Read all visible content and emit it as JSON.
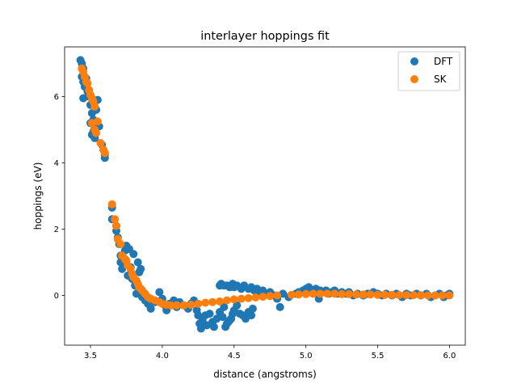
{
  "chart_data": {
    "type": "scatter",
    "title": "interlayer hoppings fit",
    "xlabel": "distance (angstroms)",
    "ylabel": "hoppings (eV)",
    "xlim": [
      3.32,
      6.11
    ],
    "ylim": [
      -1.5,
      7.5
    ],
    "xticks": [
      3.5,
      4.0,
      4.5,
      5.0,
      5.5,
      6.0
    ],
    "xtick_labels": [
      "3.5",
      "4.0",
      "4.5",
      "5.0",
      "5.5",
      "6.0"
    ],
    "yticks": [
      0,
      2,
      4,
      6
    ],
    "ytick_labels": [
      "0",
      "2",
      "4",
      "6"
    ],
    "grid": false,
    "legend": "top-right",
    "series": [
      {
        "name": "DFT",
        "color": "#1f77b4",
        "points": [
          [
            3.43,
            7.1
          ],
          [
            3.44,
            7.0
          ],
          [
            3.45,
            6.85
          ],
          [
            3.44,
            6.6
          ],
          [
            3.45,
            6.45
          ],
          [
            3.46,
            6.3
          ],
          [
            3.47,
            6.55
          ],
          [
            3.45,
            5.95
          ],
          [
            3.48,
            6.15
          ],
          [
            3.49,
            6.0
          ],
          [
            3.5,
            5.75
          ],
          [
            3.51,
            5.5
          ],
          [
            3.52,
            5.3
          ],
          [
            3.5,
            5.2
          ],
          [
            3.53,
            5.05
          ],
          [
            3.52,
            4.95
          ],
          [
            3.51,
            4.85
          ],
          [
            3.53,
            4.75
          ],
          [
            3.54,
            5.6
          ],
          [
            3.55,
            5.9
          ],
          [
            3.56,
            5.1
          ],
          [
            3.58,
            4.55
          ],
          [
            3.59,
            4.4
          ],
          [
            3.6,
            4.25
          ],
          [
            3.6,
            4.15
          ],
          [
            3.65,
            2.65
          ],
          [
            3.65,
            2.3
          ],
          [
            3.68,
            2.1
          ],
          [
            3.68,
            1.95
          ],
          [
            3.69,
            1.75
          ],
          [
            3.7,
            1.55
          ],
          [
            3.71,
            1.2
          ],
          [
            3.71,
            1.0
          ],
          [
            3.72,
            0.8
          ],
          [
            3.73,
            1.1
          ],
          [
            3.74,
            1.35
          ],
          [
            3.75,
            1.5
          ],
          [
            3.75,
            0.95
          ],
          [
            3.76,
            0.6
          ],
          [
            3.77,
            1.4
          ],
          [
            3.78,
            0.85
          ],
          [
            3.79,
            0.5
          ],
          [
            3.8,
            1.25
          ],
          [
            3.81,
            0.3
          ],
          [
            3.82,
            0.05
          ],
          [
            3.83,
            1.0
          ],
          [
            3.84,
            0.7
          ],
          [
            3.85,
            0.8
          ],
          [
            3.86,
            0.15
          ],
          [
            3.86,
            -0.05
          ],
          [
            3.88,
            -0.15
          ],
          [
            3.9,
            -0.25
          ],
          [
            3.92,
            -0.4
          ],
          [
            3.95,
            -0.2
          ],
          [
            3.98,
            0.1
          ],
          [
            4.0,
            -0.1
          ],
          [
            4.02,
            -0.3
          ],
          [
            4.03,
            -0.45
          ],
          [
            4.05,
            -0.25
          ],
          [
            4.08,
            -0.15
          ],
          [
            4.1,
            -0.35
          ],
          [
            4.12,
            -0.2
          ],
          [
            4.15,
            -0.3
          ],
          [
            4.18,
            -0.4
          ],
          [
            4.2,
            -0.25
          ],
          [
            4.22,
            -0.15
          ],
          [
            4.24,
            -0.45
          ],
          [
            4.25,
            -0.6
          ],
          [
            4.26,
            -0.85
          ],
          [
            4.27,
            -1.0
          ],
          [
            4.28,
            -0.75
          ],
          [
            4.3,
            -0.6
          ],
          [
            4.31,
            -0.9
          ],
          [
            4.33,
            -0.55
          ],
          [
            4.35,
            -0.8
          ],
          [
            4.36,
            -0.95
          ],
          [
            4.38,
            -0.7
          ],
          [
            4.4,
            -0.5
          ],
          [
            4.42,
            -0.65
          ],
          [
            4.43,
            -0.35
          ],
          [
            4.44,
            -0.95
          ],
          [
            4.45,
            -0.85
          ],
          [
            4.46,
            -0.8
          ],
          [
            4.47,
            -0.75
          ],
          [
            4.48,
            -0.7
          ],
          [
            4.49,
            -0.55
          ],
          [
            4.5,
            -0.45
          ],
          [
            4.52,
            -0.3
          ],
          [
            4.54,
            -0.55
          ],
          [
            4.56,
            -0.6
          ],
          [
            4.58,
            -0.7
          ],
          [
            4.6,
            -0.5
          ],
          [
            4.62,
            -0.6
          ],
          [
            4.63,
            -0.4
          ],
          [
            4.4,
            0.3
          ],
          [
            4.41,
            0.35
          ],
          [
            4.43,
            0.3
          ],
          [
            4.45,
            0.3
          ],
          [
            4.47,
            0.25
          ],
          [
            4.49,
            0.35
          ],
          [
            4.5,
            0.25
          ],
          [
            4.52,
            0.3
          ],
          [
            4.55,
            0.2
          ],
          [
            4.57,
            0.3
          ],
          [
            4.6,
            0.2
          ],
          [
            4.62,
            0.25
          ],
          [
            4.64,
            0.15
          ],
          [
            4.66,
            0.2
          ],
          [
            4.68,
            0.1
          ],
          [
            4.7,
            0.15
          ],
          [
            4.72,
            0.05
          ],
          [
            4.75,
            0.1
          ],
          [
            4.78,
            0.0
          ],
          [
            4.8,
            -0.1
          ],
          [
            4.82,
            -0.35
          ],
          [
            4.84,
            0.05
          ],
          [
            4.88,
            -0.05
          ],
          [
            4.93,
            0.05
          ],
          [
            4.95,
            0.1
          ],
          [
            4.98,
            0.15
          ],
          [
            5.0,
            0.2
          ],
          [
            5.02,
            0.25
          ],
          [
            5.03,
            0.1
          ],
          [
            5.05,
            0.15
          ],
          [
            5.07,
            0.2
          ],
          [
            5.09,
            -0.1
          ],
          [
            5.1,
            0.15
          ],
          [
            5.12,
            0.1
          ],
          [
            5.14,
            0.15
          ],
          [
            5.16,
            0.05
          ],
          [
            5.18,
            0.1
          ],
          [
            5.2,
            0.15
          ],
          [
            5.22,
            0.05
          ],
          [
            5.25,
            0.1
          ],
          [
            5.28,
            0.05
          ],
          [
            5.3,
            0.1
          ],
          [
            5.33,
            0.0
          ],
          [
            5.36,
            0.05
          ],
          [
            5.4,
            0.0
          ],
          [
            5.43,
            0.05
          ],
          [
            5.47,
            0.1
          ],
          [
            5.5,
            0.05
          ],
          [
            5.53,
            0.0
          ],
          [
            5.56,
            0.05
          ],
          [
            5.6,
            0.0
          ],
          [
            5.63,
            0.05
          ],
          [
            5.67,
            -0.05
          ],
          [
            5.7,
            0.05
          ],
          [
            5.73,
            0.0
          ],
          [
            5.77,
            0.05
          ],
          [
            5.8,
            0.0
          ],
          [
            5.84,
            0.05
          ],
          [
            5.87,
            -0.05
          ],
          [
            5.9,
            0.0
          ],
          [
            5.93,
            0.05
          ],
          [
            5.96,
            -0.05
          ],
          [
            5.98,
            0.0
          ],
          [
            6.0,
            0.05
          ]
        ]
      },
      {
        "name": "SK",
        "color": "#ff7f0e",
        "points": [
          [
            3.44,
            6.85
          ],
          [
            3.45,
            6.75
          ],
          [
            3.46,
            6.6
          ],
          [
            3.47,
            6.45
          ],
          [
            3.48,
            6.4
          ],
          [
            3.49,
            6.2
          ],
          [
            3.5,
            6.05
          ],
          [
            3.51,
            5.95
          ],
          [
            3.52,
            5.85
          ],
          [
            3.53,
            5.7
          ],
          [
            3.51,
            5.2
          ],
          [
            3.53,
            5.0
          ],
          [
            3.54,
            4.9
          ],
          [
            3.55,
            5.25
          ],
          [
            3.57,
            4.6
          ],
          [
            3.59,
            4.4
          ],
          [
            3.6,
            4.3
          ],
          [
            3.65,
            2.75
          ],
          [
            3.67,
            2.3
          ],
          [
            3.68,
            2.1
          ],
          [
            3.69,
            1.7
          ],
          [
            3.71,
            1.55
          ],
          [
            3.72,
            1.2
          ],
          [
            3.74,
            1.1
          ],
          [
            3.75,
            1.05
          ],
          [
            3.76,
            0.9
          ],
          [
            3.78,
            0.8
          ],
          [
            3.79,
            0.65
          ],
          [
            3.8,
            0.55
          ],
          [
            3.82,
            0.45
          ],
          [
            3.83,
            0.35
          ],
          [
            3.84,
            0.25
          ],
          [
            3.85,
            0.2
          ],
          [
            3.86,
            0.15
          ],
          [
            3.88,
            0.05
          ],
          [
            3.9,
            -0.05
          ],
          [
            3.92,
            -0.1
          ],
          [
            3.95,
            -0.15
          ],
          [
            3.98,
            -0.2
          ],
          [
            4.0,
            -0.25
          ],
          [
            4.03,
            -0.28
          ],
          [
            4.06,
            -0.3
          ],
          [
            4.1,
            -0.3
          ],
          [
            4.15,
            -0.3
          ],
          [
            4.2,
            -0.28
          ],
          [
            4.25,
            -0.25
          ],
          [
            4.3,
            -0.22
          ],
          [
            4.35,
            -0.2
          ],
          [
            4.4,
            -0.18
          ],
          [
            4.45,
            -0.15
          ],
          [
            4.5,
            -0.12
          ],
          [
            4.55,
            -0.1
          ],
          [
            4.6,
            -0.08
          ],
          [
            4.65,
            -0.06
          ],
          [
            4.7,
            -0.04
          ],
          [
            4.75,
            -0.02
          ],
          [
            4.8,
            0.0
          ],
          [
            4.9,
            0.02
          ],
          [
            4.95,
            0.03
          ],
          [
            5.0,
            0.04
          ],
          [
            5.05,
            0.05
          ],
          [
            5.1,
            0.05
          ],
          [
            5.15,
            0.05
          ],
          [
            5.2,
            0.05
          ],
          [
            5.25,
            0.04
          ],
          [
            5.3,
            0.04
          ],
          [
            5.35,
            0.03
          ],
          [
            5.4,
            0.03
          ],
          [
            5.45,
            0.03
          ],
          [
            5.5,
            0.02
          ],
          [
            5.55,
            0.02
          ],
          [
            5.6,
            0.02
          ],
          [
            5.65,
            0.01
          ],
          [
            5.7,
            0.01
          ],
          [
            5.75,
            0.01
          ],
          [
            5.8,
            0.01
          ],
          [
            5.85,
            0.0
          ],
          [
            5.9,
            0.0
          ],
          [
            5.95,
            0.0
          ],
          [
            6.0,
            0.0
          ]
        ]
      }
    ]
  }
}
